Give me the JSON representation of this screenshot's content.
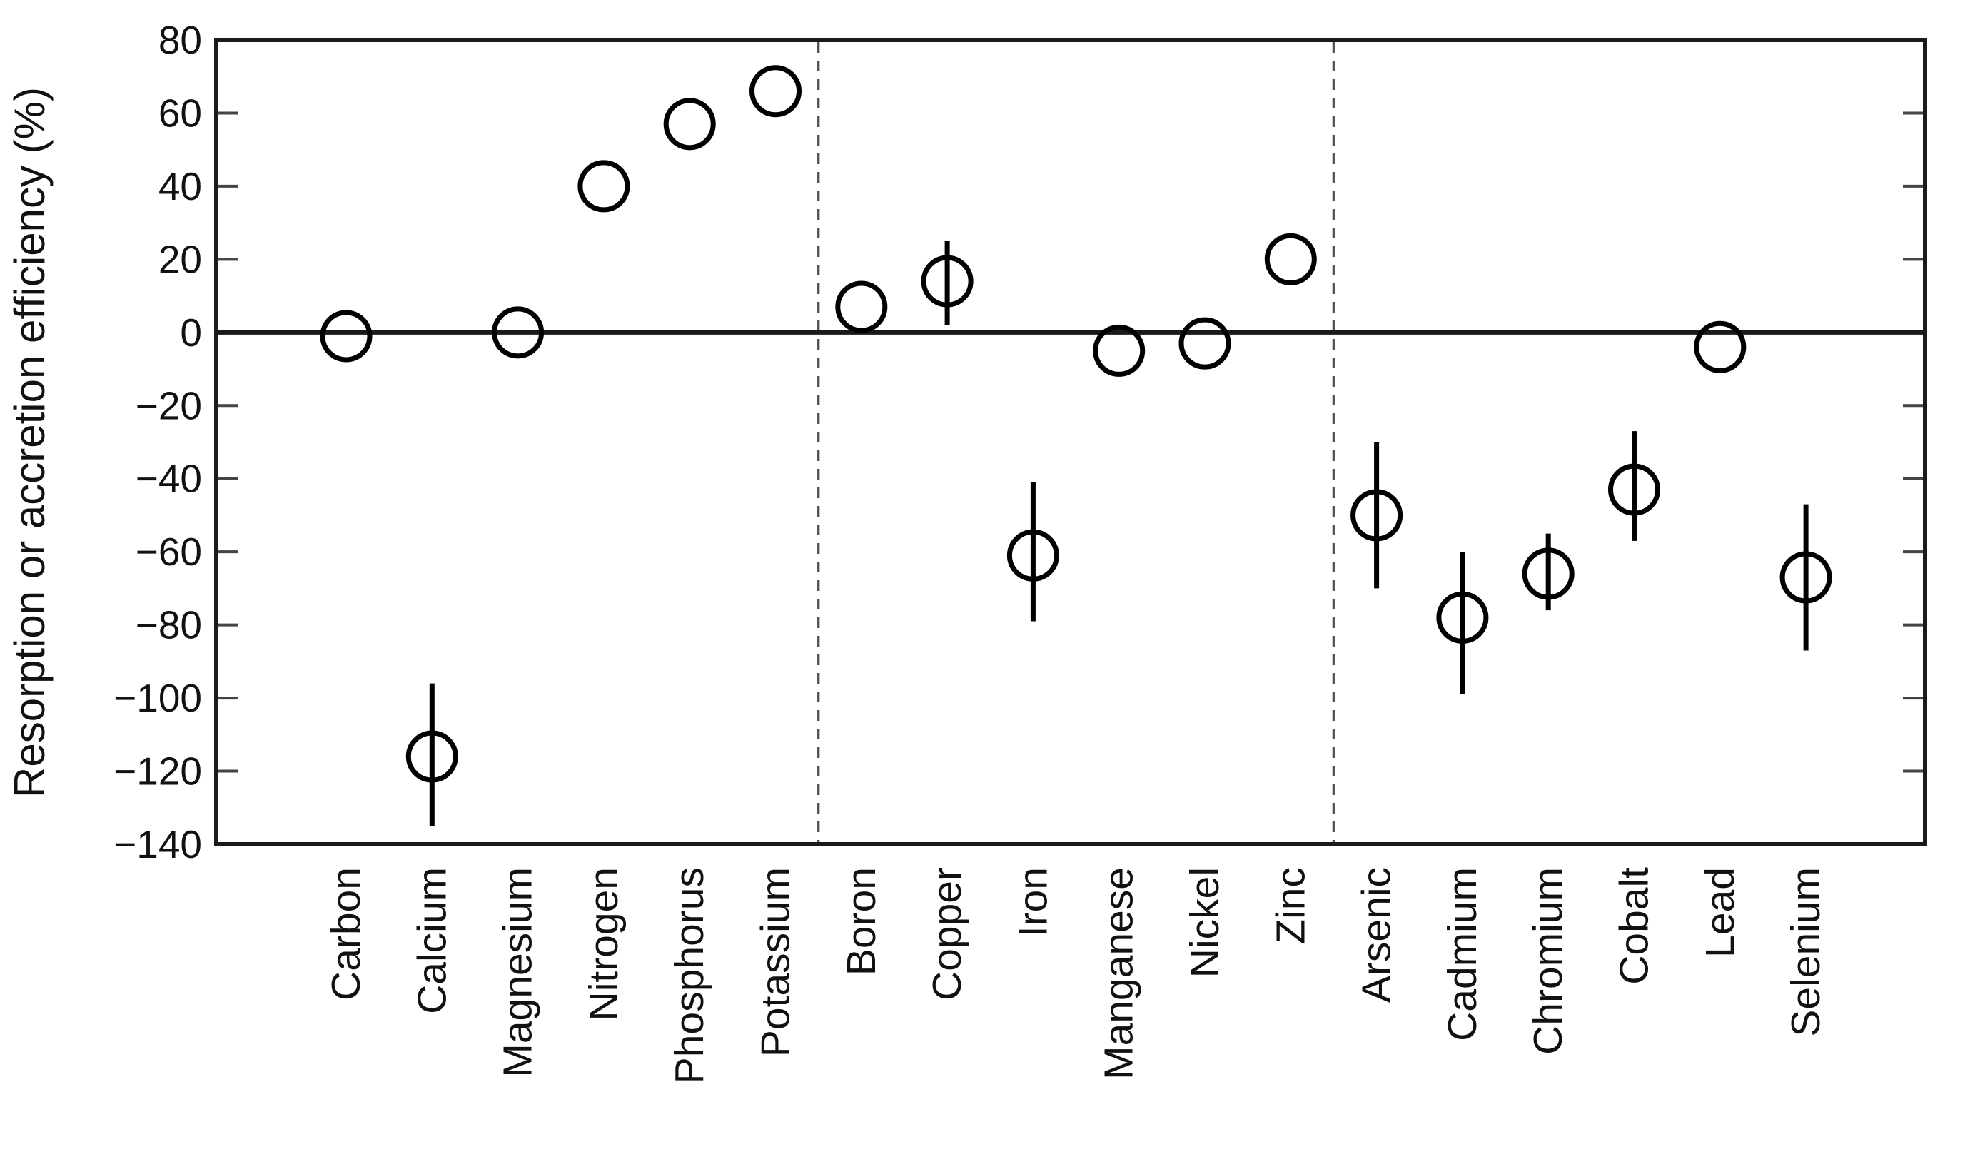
{
  "chart_data": {
    "type": "scatter",
    "title": "",
    "ylabel": "Resorption or accretion efficiency (%)",
    "xlabel": "",
    "ylim": [
      -140,
      80
    ],
    "ytick_step": 20,
    "ytick_labels": [
      "80",
      "60",
      "40",
      "20",
      "0",
      "−20",
      "−40",
      "−60",
      "−80",
      "−100",
      "−120",
      "−140"
    ],
    "grid": false,
    "legend": "none",
    "zero_reference_line": true,
    "marker": "open-circle",
    "marker_color": "#000000",
    "separator_line_style": "dashed",
    "separator_color": "#555555",
    "separators_after_index": [
      5,
      11
    ],
    "categories": [
      "Carbon",
      "Calcium",
      "Magnesium",
      "Nitrogen",
      "Phosphorus",
      "Potassium",
      "Boron",
      "Copper",
      "Iron",
      "Manganese",
      "Nickel",
      "Zinc",
      "Arsenic",
      "Cadmium",
      "Chromium",
      "Cobalt",
      "Lead",
      "Selenium"
    ],
    "points": [
      {
        "category": "Carbon",
        "value": -1,
        "err_lo": null,
        "err_hi": null
      },
      {
        "category": "Calcium",
        "value": -116,
        "err_lo": -135,
        "err_hi": -96
      },
      {
        "category": "Magnesium",
        "value": 0,
        "err_lo": null,
        "err_hi": null
      },
      {
        "category": "Nitrogen",
        "value": 40,
        "err_lo": null,
        "err_hi": null
      },
      {
        "category": "Phosphorus",
        "value": 57,
        "err_lo": null,
        "err_hi": null
      },
      {
        "category": "Potassium",
        "value": 66,
        "err_lo": null,
        "err_hi": null
      },
      {
        "category": "Boron",
        "value": 7,
        "err_lo": null,
        "err_hi": null
      },
      {
        "category": "Copper",
        "value": 14,
        "err_lo": 2,
        "err_hi": 25
      },
      {
        "category": "Iron",
        "value": -61,
        "err_lo": -79,
        "err_hi": -41
      },
      {
        "category": "Manganese",
        "value": -5,
        "err_lo": null,
        "err_hi": null
      },
      {
        "category": "Nickel",
        "value": -3,
        "err_lo": null,
        "err_hi": null
      },
      {
        "category": "Zinc",
        "value": 20,
        "err_lo": null,
        "err_hi": null
      },
      {
        "category": "Arsenic",
        "value": -50,
        "err_lo": -70,
        "err_hi": -30
      },
      {
        "category": "Cadmium",
        "value": -78,
        "err_lo": -99,
        "err_hi": -60
      },
      {
        "category": "Chromium",
        "value": -66,
        "err_lo": -76,
        "err_hi": -55
      },
      {
        "category": "Cobalt",
        "value": -43,
        "err_lo": -57,
        "err_hi": -27
      },
      {
        "category": "Lead",
        "value": -4,
        "err_lo": null,
        "err_hi": null
      },
      {
        "category": "Selenium",
        "value": -67,
        "err_lo": -87,
        "err_hi": -47
      }
    ]
  }
}
